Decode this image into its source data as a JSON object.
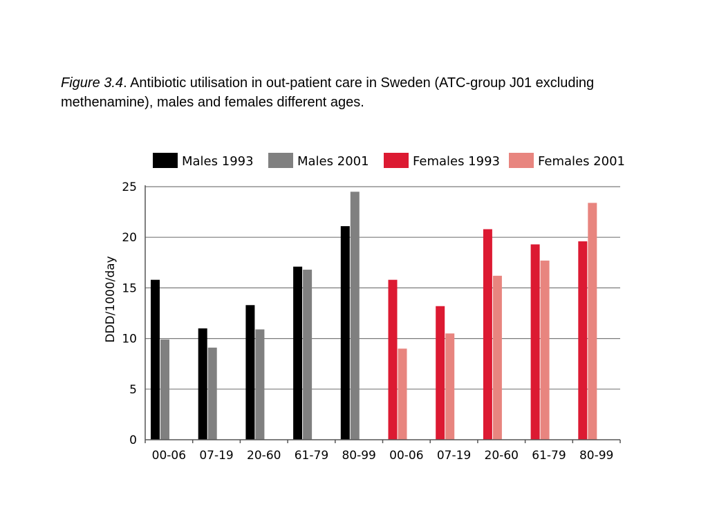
{
  "caption": {
    "figure_label": "Figure 3.4",
    "text": ". Antibiotic utilisation in out-patient care in Sweden (ATC-group J01 excluding methenamine), males and females different ages."
  },
  "chart_data": {
    "type": "bar",
    "ylabel": "DDD/1000/day",
    "ylim": [
      0,
      25
    ],
    "yticks": [
      0,
      5,
      10,
      15,
      20,
      25
    ],
    "grid": true,
    "legend_position": "top",
    "categories": [
      "00-06",
      "07-19",
      "20-60",
      "61-79",
      "80-99",
      "00-06",
      "07-19",
      "20-60",
      "61-79",
      "80-99"
    ],
    "series": [
      {
        "name": "Males 1993",
        "color": "#000000",
        "values": [
          15.8,
          11.0,
          13.3,
          17.1,
          21.1,
          null,
          null,
          null,
          null,
          null
        ]
      },
      {
        "name": "Males 2001",
        "color": "#808080",
        "values": [
          9.9,
          9.1,
          10.9,
          16.8,
          24.5,
          null,
          null,
          null,
          null,
          null
        ]
      },
      {
        "name": "Females 1993",
        "color": "#dc1a32",
        "values": [
          null,
          null,
          null,
          null,
          null,
          15.8,
          13.2,
          20.8,
          19.3,
          19.6
        ]
      },
      {
        "name": "Females 2001",
        "color": "#e8857f",
        "values": [
          null,
          null,
          null,
          null,
          null,
          9.0,
          10.5,
          16.2,
          17.7,
          23.4
        ]
      }
    ]
  }
}
